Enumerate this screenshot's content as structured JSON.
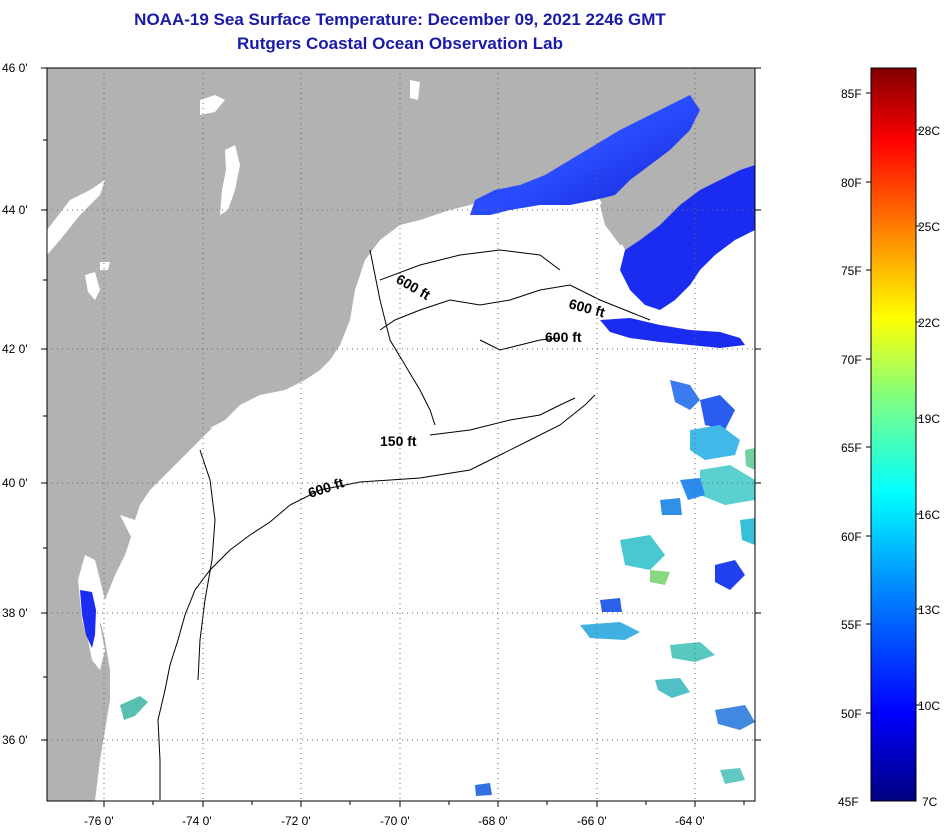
{
  "header": {
    "title": "NOAA-19 Sea Surface Temperature:  December 09, 2021 2246 GMT",
    "subtitle": "Rutgers Coastal Ocean Observation Lab"
  },
  "map": {
    "lat_labels": [
      "46 0'",
      "44 0'",
      "42 0'",
      "40 0'",
      "38 0'",
      "36 0'"
    ],
    "lon_labels": [
      "-76 0'",
      "-74 0'",
      "-72 0'",
      "-70 0'",
      "-68 0'",
      "-66 0'",
      "-64 0'"
    ],
    "contour_labels": [
      "600 ft",
      "600 ft",
      "600 ft",
      "150 ft",
      "600 ft"
    ]
  },
  "colorbar": {
    "fahrenheit": [
      "85F",
      "80F",
      "75F",
      "70F",
      "65F",
      "60F",
      "55F",
      "50F",
      "45F"
    ],
    "celsius": [
      "28C",
      "25C",
      "22C",
      "19C",
      "16C",
      "13C",
      "10C",
      "7C"
    ],
    "colors": [
      "#000080",
      "#0000ff",
      "#0080ff",
      "#00ffff",
      "#80ff80",
      "#ffff00",
      "#ff8000",
      "#ff0000",
      "#800000"
    ]
  },
  "colors": {
    "land": "#b2b2b2",
    "ocean": "#ffffff",
    "title": "#1a1aa8",
    "cold_water": "#1a2cf0"
  }
}
